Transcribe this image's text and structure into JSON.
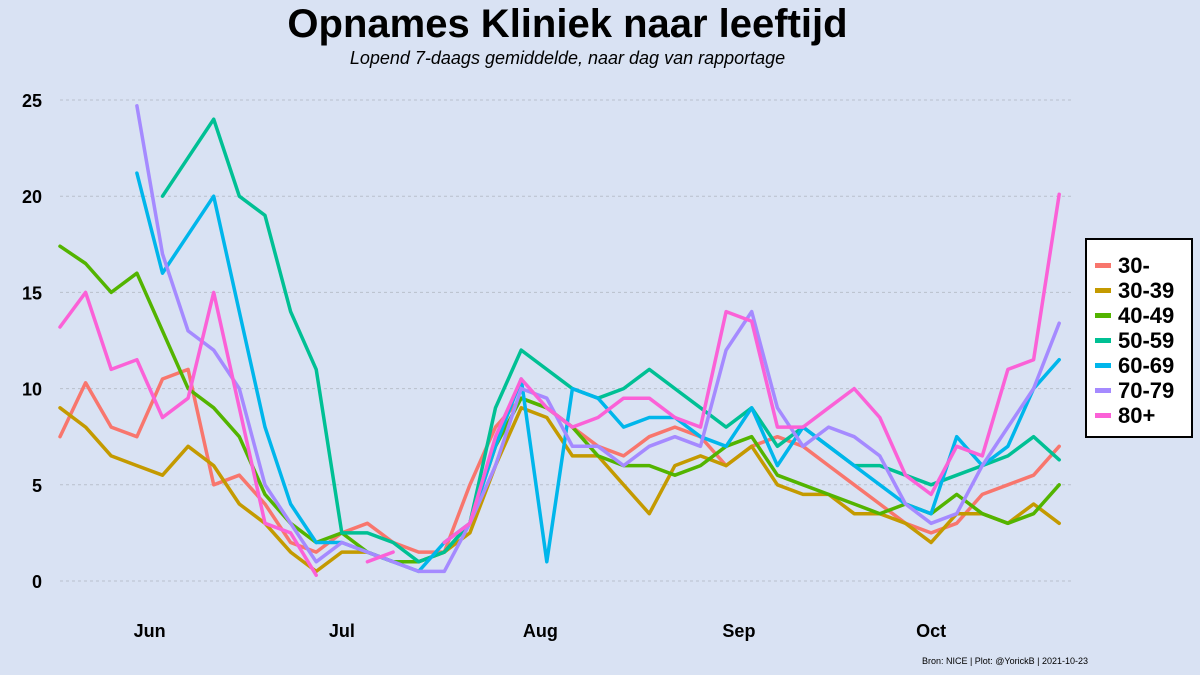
{
  "title": "Opnames Kliniek naar leeftijd",
  "subtitle": "Lopend 7-daags gemiddelde, naar dag van rapportage",
  "caption": "Bron: NICE | Plot: @YorickB  |  2021-10-23",
  "chart_data": {
    "type": "line",
    "title": "Opnames Kliniek naar leeftijd",
    "subtitle": "Lopend 7-daags gemiddelde, naar dag van rapportage",
    "xlabel": "",
    "ylabel": "",
    "ylim": [
      0,
      25
    ],
    "yticks": [
      0,
      5,
      10,
      15,
      20,
      25
    ],
    "xlim": [
      "2021-05-18",
      "2021-10-23"
    ],
    "xticks": [
      {
        "date": "2021-06-01",
        "label": "Jun"
      },
      {
        "date": "2021-07-01",
        "label": "Jul"
      },
      {
        "date": "2021-08-01",
        "label": "Aug"
      },
      {
        "date": "2021-09-01",
        "label": "Sep"
      },
      {
        "date": "2021-10-01",
        "label": "Oct"
      }
    ],
    "grid": "horizontal",
    "legend_position": "right",
    "x": [
      "2021-05-18",
      "2021-05-22",
      "2021-05-26",
      "2021-05-30",
      "2021-06-03",
      "2021-06-07",
      "2021-06-11",
      "2021-06-15",
      "2021-06-19",
      "2021-06-23",
      "2021-06-27",
      "2021-07-01",
      "2021-07-05",
      "2021-07-09",
      "2021-07-13",
      "2021-07-17",
      "2021-07-21",
      "2021-07-25",
      "2021-07-29",
      "2021-08-02",
      "2021-08-06",
      "2021-08-10",
      "2021-08-14",
      "2021-08-18",
      "2021-08-22",
      "2021-08-26",
      "2021-08-30",
      "2021-09-03",
      "2021-09-07",
      "2021-09-11",
      "2021-09-15",
      "2021-09-19",
      "2021-09-23",
      "2021-09-27",
      "2021-10-01",
      "2021-10-05",
      "2021-10-09",
      "2021-10-13",
      "2021-10-17",
      "2021-10-21"
    ],
    "series": [
      {
        "name": "30-",
        "color": "#f8766d",
        "values": [
          7.5,
          10.3,
          8,
          7.5,
          10.5,
          11,
          5,
          5.5,
          4,
          2,
          1.5,
          2.5,
          3,
          2,
          1.5,
          1.5,
          5,
          8,
          9.5,
          9,
          8,
          7,
          6.5,
          7.5,
          8,
          7.5,
          6,
          7,
          7.5,
          7,
          6,
          5,
          4,
          3,
          2.5,
          3,
          4.5,
          5,
          5.5,
          7
        ]
      },
      {
        "name": "30-39",
        "color": "#c49a00",
        "values": [
          9,
          8,
          6.5,
          6,
          5.5,
          7,
          6,
          4,
          3,
          1.5,
          0.5,
          1.5,
          1.5,
          1,
          1,
          1.5,
          2.5,
          6,
          9,
          8.5,
          6.5,
          6.5,
          5,
          3.5,
          6,
          6.5,
          6,
          7,
          5,
          4.5,
          4.5,
          3.5,
          3.5,
          3,
          2,
          3.5,
          3.5,
          3,
          4,
          3
        ]
      },
      {
        "name": "40-49",
        "color": "#53b400",
        "values": [
          17.4,
          16.5,
          15,
          16,
          13,
          10,
          9,
          7.5,
          4.5,
          3,
          2,
          2.5,
          1.5,
          1,
          1,
          1.5,
          3,
          7,
          9.5,
          9,
          8,
          6.5,
          6,
          6,
          5.5,
          6,
          7,
          7.5,
          5.5,
          5,
          4.5,
          4,
          3.5,
          4,
          3.5,
          4.5,
          3.5,
          3,
          3.5,
          5
        ]
      },
      {
        "name": "50-59",
        "color": "#00c094",
        "values": [
          null,
          null,
          null,
          null,
          20,
          22,
          24,
          20,
          19,
          14,
          11,
          2.5,
          2.5,
          2,
          1,
          1.5,
          3,
          9,
          12,
          11,
          10,
          9.5,
          10,
          11,
          10,
          9,
          8,
          9,
          7,
          8,
          7,
          6,
          6,
          5.5,
          5,
          5.5,
          6,
          6.5,
          7.5,
          6.3
        ]
      },
      {
        "name": "60-69",
        "color": "#00b6eb",
        "values": [
          null,
          null,
          null,
          21.2,
          16,
          18,
          20,
          14,
          8,
          4,
          2,
          2,
          1.5,
          1,
          0.5,
          2,
          3,
          7,
          10.5,
          1,
          10,
          9.5,
          8,
          8.5,
          8.5,
          7.5,
          7,
          9,
          6,
          8,
          7,
          6,
          5,
          4,
          3.5,
          7.5,
          6,
          7,
          10,
          11.5
        ]
      },
      {
        "name": "70-79",
        "color": "#a58aff",
        "values": [
          null,
          null,
          null,
          24.7,
          17,
          13,
          12,
          10,
          5,
          3,
          1,
          2,
          1.5,
          1,
          0.5,
          0.5,
          3,
          6,
          10,
          9.5,
          7,
          7,
          6,
          7,
          7.5,
          7,
          12,
          14,
          9,
          7,
          8,
          7.5,
          6.5,
          4,
          3,
          3.5,
          6,
          8,
          10,
          13.4
        ]
      },
      {
        "name": "80+",
        "color": "#fb61d7",
        "values": [
          13.2,
          15,
          11,
          11.5,
          8.5,
          9.5,
          15,
          9,
          3,
          2.5,
          0.3,
          null,
          1,
          1.5,
          null,
          2,
          3,
          7.5,
          10.5,
          9,
          8,
          8.5,
          9.5,
          9.5,
          8.5,
          8,
          14,
          13.5,
          8,
          8,
          9,
          10,
          8.5,
          5.5,
          4.5,
          7,
          6.5,
          11,
          11.5,
          20.1
        ]
      }
    ]
  }
}
